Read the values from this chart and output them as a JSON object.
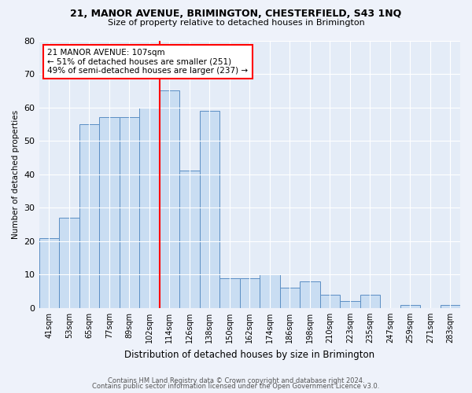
{
  "title1": "21, MANOR AVENUE, BRIMINGTON, CHESTERFIELD, S43 1NQ",
  "title2": "Size of property relative to detached houses in Brimington",
  "xlabel": "Distribution of detached houses by size in Brimington",
  "ylabel": "Number of detached properties",
  "categories": [
    "41sqm",
    "53sqm",
    "65sqm",
    "77sqm",
    "89sqm",
    "102sqm",
    "114sqm",
    "126sqm",
    "138sqm",
    "150sqm",
    "162sqm",
    "174sqm",
    "186sqm",
    "198sqm",
    "210sqm",
    "223sqm",
    "235sqm",
    "247sqm",
    "259sqm",
    "271sqm",
    "283sqm"
  ],
  "values": [
    21,
    27,
    55,
    57,
    57,
    60,
    65,
    41,
    59,
    9,
    9,
    10,
    6,
    8,
    4,
    2,
    4,
    0,
    1,
    0,
    1
  ],
  "bar_color": "#c9ddf2",
  "bar_edge_color": "#5b8ec4",
  "redline_x": 6.0,
  "annotation_text": "21 MANOR AVENUE: 107sqm\n← 51% of detached houses are smaller (251)\n49% of semi-detached houses are larger (237) →",
  "annotation_box_color": "white",
  "annotation_box_edge": "red",
  "ylim": [
    0,
    80
  ],
  "yticks": [
    0,
    10,
    20,
    30,
    40,
    50,
    60,
    70,
    80
  ],
  "footer1": "Contains HM Land Registry data © Crown copyright and database right 2024.",
  "footer2": "Contains public sector information licensed under the Open Government Licence v3.0.",
  "bg_color": "#eef2fa",
  "plot_bg_color": "#e4ecf7"
}
